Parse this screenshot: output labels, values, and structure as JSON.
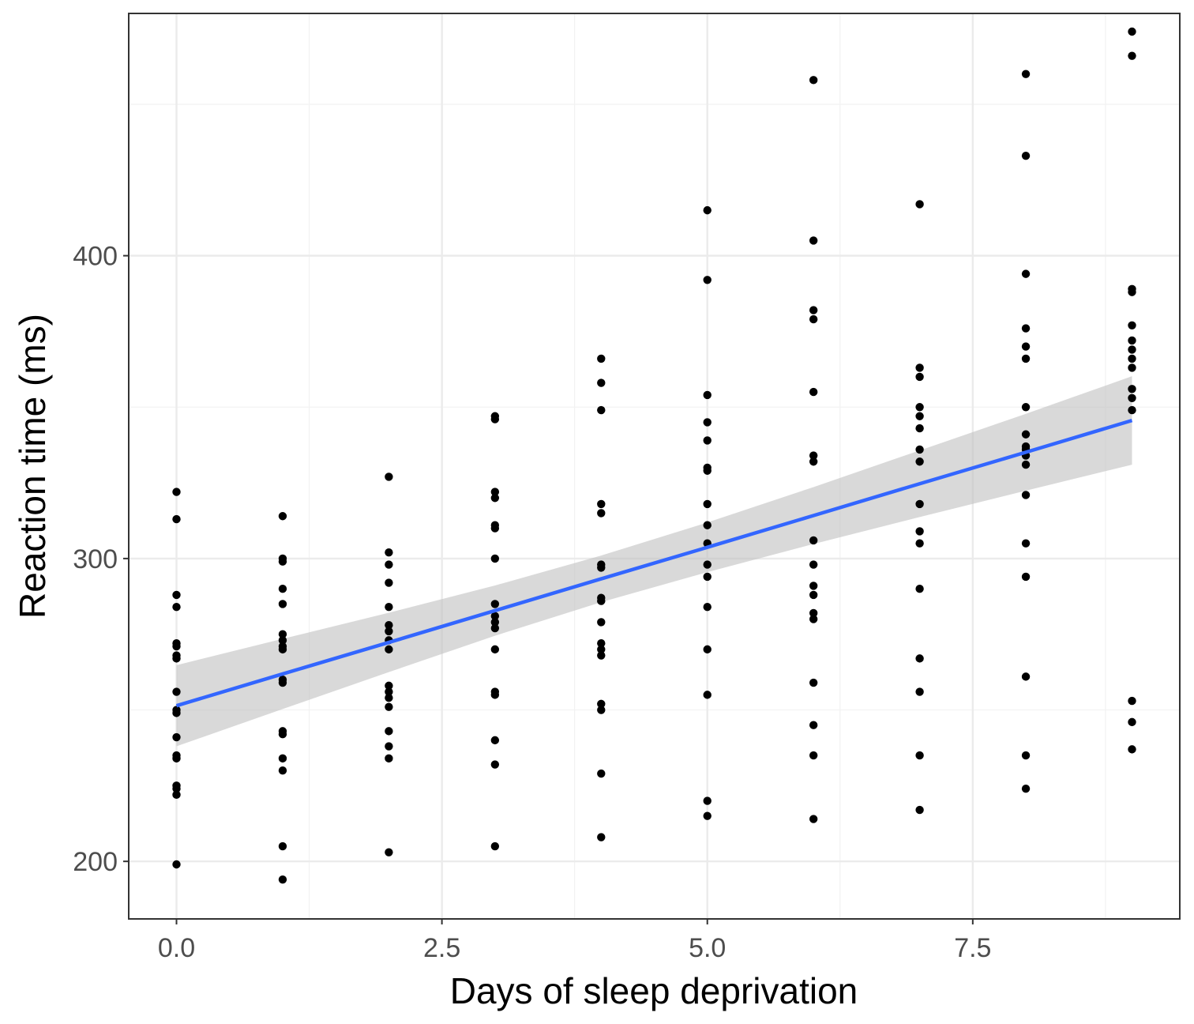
{
  "chart_data": {
    "type": "scatter",
    "title": "",
    "xlabel": "Days of sleep deprivation",
    "ylabel": "Reaction time (ms)",
    "xlim": [
      -0.45,
      9.45
    ],
    "ylim": [
      181,
      480
    ],
    "x_ticks": [
      0.0,
      2.5,
      5.0,
      7.5
    ],
    "x_tick_labels": [
      "0.0",
      "2.5",
      "5.0",
      "7.5"
    ],
    "y_ticks": [
      200,
      300,
      400
    ],
    "y_tick_labels": [
      "200",
      "300",
      "400"
    ],
    "grid": true,
    "legend": "none",
    "points_color": "#000000",
    "fit_color": "#3366ff",
    "ribbon_color": "#bfbfbf",
    "points": [
      [
        0,
        199
      ],
      [
        0,
        222
      ],
      [
        0,
        224
      ],
      [
        0,
        225
      ],
      [
        0,
        234
      ],
      [
        0,
        235
      ],
      [
        0,
        241
      ],
      [
        0,
        249
      ],
      [
        0,
        250
      ],
      [
        0,
        256
      ],
      [
        0,
        267
      ],
      [
        0,
        268
      ],
      [
        0,
        271
      ],
      [
        0,
        272
      ],
      [
        0,
        284
      ],
      [
        0,
        288
      ],
      [
        0,
        313
      ],
      [
        0,
        322
      ],
      [
        1,
        194
      ],
      [
        1,
        205
      ],
      [
        1,
        230
      ],
      [
        1,
        234
      ],
      [
        1,
        242
      ],
      [
        1,
        243
      ],
      [
        1,
        259
      ],
      [
        1,
        260
      ],
      [
        1,
        270
      ],
      [
        1,
        271
      ],
      [
        1,
        273
      ],
      [
        1,
        275
      ],
      [
        1,
        285
      ],
      [
        1,
        290
      ],
      [
        1,
        299
      ],
      [
        1,
        300
      ],
      [
        1,
        314
      ],
      [
        2,
        203
      ],
      [
        2,
        234
      ],
      [
        2,
        238
      ],
      [
        2,
        243
      ],
      [
        2,
        251
      ],
      [
        2,
        254
      ],
      [
        2,
        256
      ],
      [
        2,
        258
      ],
      [
        2,
        270
      ],
      [
        2,
        273
      ],
      [
        2,
        276
      ],
      [
        2,
        278
      ],
      [
        2,
        284
      ],
      [
        2,
        292
      ],
      [
        2,
        298
      ],
      [
        2,
        302
      ],
      [
        2,
        327
      ],
      [
        3,
        205
      ],
      [
        3,
        232
      ],
      [
        3,
        240
      ],
      [
        3,
        255
      ],
      [
        3,
        256
      ],
      [
        3,
        270
      ],
      [
        3,
        277
      ],
      [
        3,
        279
      ],
      [
        3,
        281
      ],
      [
        3,
        285
      ],
      [
        3,
        300
      ],
      [
        3,
        310
      ],
      [
        3,
        311
      ],
      [
        3,
        320
      ],
      [
        3,
        322
      ],
      [
        3,
        346
      ],
      [
        3,
        347
      ],
      [
        4,
        208
      ],
      [
        4,
        229
      ],
      [
        4,
        250
      ],
      [
        4,
        252
      ],
      [
        4,
        268
      ],
      [
        4,
        270
      ],
      [
        4,
        272
      ],
      [
        4,
        279
      ],
      [
        4,
        286
      ],
      [
        4,
        287
      ],
      [
        4,
        297
      ],
      [
        4,
        298
      ],
      [
        4,
        315
      ],
      [
        4,
        318
      ],
      [
        4,
        349
      ],
      [
        4,
        358
      ],
      [
        4,
        366
      ],
      [
        5,
        215
      ],
      [
        5,
        220
      ],
      [
        5,
        255
      ],
      [
        5,
        270
      ],
      [
        5,
        284
      ],
      [
        5,
        294
      ],
      [
        5,
        298
      ],
      [
        5,
        305
      ],
      [
        5,
        311
      ],
      [
        5,
        318
      ],
      [
        5,
        329
      ],
      [
        5,
        330
      ],
      [
        5,
        339
      ],
      [
        5,
        345
      ],
      [
        5,
        354
      ],
      [
        5,
        392
      ],
      [
        5,
        415
      ],
      [
        6,
        214
      ],
      [
        6,
        235
      ],
      [
        6,
        245
      ],
      [
        6,
        259
      ],
      [
        6,
        280
      ],
      [
        6,
        282
      ],
      [
        6,
        288
      ],
      [
        6,
        291
      ],
      [
        6,
        298
      ],
      [
        6,
        306
      ],
      [
        6,
        332
      ],
      [
        6,
        334
      ],
      [
        6,
        355
      ],
      [
        6,
        379
      ],
      [
        6,
        382
      ],
      [
        6,
        405
      ],
      [
        6,
        458
      ],
      [
        7,
        217
      ],
      [
        7,
        235
      ],
      [
        7,
        256
      ],
      [
        7,
        267
      ],
      [
        7,
        290
      ],
      [
        7,
        305
      ],
      [
        7,
        309
      ],
      [
        7,
        318
      ],
      [
        7,
        332
      ],
      [
        7,
        336
      ],
      [
        7,
        343
      ],
      [
        7,
        347
      ],
      [
        7,
        350
      ],
      [
        7,
        360
      ],
      [
        7,
        363
      ],
      [
        7,
        417
      ],
      [
        8,
        224
      ],
      [
        8,
        235
      ],
      [
        8,
        261
      ],
      [
        8,
        294
      ],
      [
        8,
        305
      ],
      [
        8,
        321
      ],
      [
        8,
        331
      ],
      [
        8,
        334
      ],
      [
        8,
        336
      ],
      [
        8,
        337
      ],
      [
        8,
        341
      ],
      [
        8,
        350
      ],
      [
        8,
        366
      ],
      [
        8,
        370
      ],
      [
        8,
        376
      ],
      [
        8,
        394
      ],
      [
        8,
        433
      ],
      [
        8,
        460
      ],
      [
        9,
        237
      ],
      [
        9,
        246
      ],
      [
        9,
        253
      ],
      [
        9,
        349
      ],
      [
        9,
        353
      ],
      [
        9,
        356
      ],
      [
        9,
        363
      ],
      [
        9,
        366
      ],
      [
        9,
        369
      ],
      [
        9,
        372
      ],
      [
        9,
        377
      ],
      [
        9,
        388
      ],
      [
        9,
        389
      ],
      [
        9,
        466
      ],
      [
        9,
        474
      ]
    ],
    "fit": {
      "x": [
        0,
        1,
        2,
        3,
        4,
        5,
        6,
        7,
        8,
        9
      ],
      "y": [
        251.4,
        261.9,
        272.3,
        282.8,
        293.3,
        303.7,
        314.2,
        324.7,
        335.1,
        345.6
      ],
      "lower": [
        238.0,
        250.3,
        262.5,
        274.5,
        285.6,
        295.5,
        304.8,
        313.7,
        322.4,
        331.0
      ],
      "upper": [
        264.8,
        273.5,
        282.1,
        291.1,
        301.0,
        311.9,
        323.6,
        335.7,
        347.8,
        360.2
      ]
    }
  }
}
